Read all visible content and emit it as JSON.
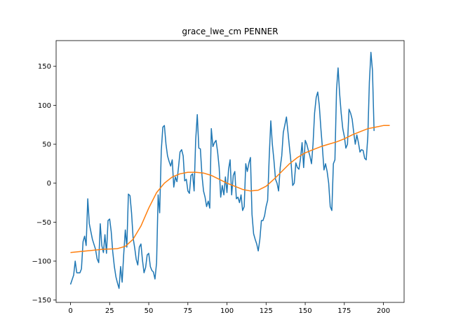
{
  "chart_data": {
    "type": "line",
    "title": "grace_lwe_cm PENNER",
    "xlabel": "",
    "ylabel": "",
    "xlim": [
      -9.2,
      213.2
    ],
    "ylim": [
      -153,
      183
    ],
    "xticks": [
      0,
      25,
      50,
      75,
      100,
      125,
      150,
      175,
      200
    ],
    "yticks": [
      -150,
      -100,
      -50,
      0,
      50,
      100,
      150
    ],
    "grid": false,
    "series": [
      {
        "color": "#1f77b4",
        "points": [
          [
            0,
            -130
          ],
          [
            2,
            -118
          ],
          [
            3,
            -100
          ],
          [
            4,
            -115
          ],
          [
            6,
            -115
          ],
          [
            7,
            -110
          ],
          [
            8,
            -75
          ],
          [
            9,
            -68
          ],
          [
            10,
            -80
          ],
          [
            11,
            -20
          ],
          [
            12,
            -52
          ],
          [
            14,
            -72
          ],
          [
            16,
            -85
          ],
          [
            17,
            -97
          ],
          [
            18,
            -102
          ],
          [
            19,
            -52
          ],
          [
            20,
            -80
          ],
          [
            21,
            -89
          ],
          [
            22,
            -66
          ],
          [
            23,
            -90
          ],
          [
            24,
            -48
          ],
          [
            25,
            -46
          ],
          [
            26,
            -62
          ],
          [
            27,
            -88
          ],
          [
            28,
            -107
          ],
          [
            29,
            -120
          ],
          [
            30,
            -128
          ],
          [
            31,
            -135
          ],
          [
            32,
            -107
          ],
          [
            33,
            -127
          ],
          [
            34,
            -92
          ],
          [
            35,
            -60
          ],
          [
            36,
            -82
          ],
          [
            37,
            -14
          ],
          [
            38,
            -16
          ],
          [
            39,
            -38
          ],
          [
            40,
            -70
          ],
          [
            41,
            -83
          ],
          [
            42,
            -98
          ],
          [
            43,
            -105
          ],
          [
            44,
            -82
          ],
          [
            45,
            -78
          ],
          [
            46,
            -99
          ],
          [
            47,
            -115
          ],
          [
            48,
            -108
          ],
          [
            49,
            -92
          ],
          [
            50,
            -90
          ],
          [
            51,
            -107
          ],
          [
            52,
            -112
          ],
          [
            53,
            -114
          ],
          [
            54,
            -123
          ],
          [
            55,
            -102
          ],
          [
            56,
            -15
          ],
          [
            57,
            -38
          ],
          [
            58,
            42
          ],
          [
            59,
            72
          ],
          [
            60,
            74
          ],
          [
            61,
            50
          ],
          [
            62,
            35
          ],
          [
            63,
            28
          ],
          [
            64,
            22
          ],
          [
            65,
            30
          ],
          [
            66,
            -5
          ],
          [
            67,
            8
          ],
          [
            68,
            2
          ],
          [
            69,
            20
          ],
          [
            70,
            40
          ],
          [
            71,
            43
          ],
          [
            72,
            35
          ],
          [
            73,
            3
          ],
          [
            74,
            5
          ],
          [
            75,
            -10
          ],
          [
            76,
            -13
          ],
          [
            77,
            10
          ],
          [
            78,
            12
          ],
          [
            79,
            -10
          ],
          [
            80,
            55
          ],
          [
            81,
            88
          ],
          [
            82,
            45
          ],
          [
            83,
            44
          ],
          [
            84,
            10
          ],
          [
            85,
            -10
          ],
          [
            86,
            -18
          ],
          [
            87,
            -30
          ],
          [
            88,
            -23
          ],
          [
            89,
            -32
          ],
          [
            90,
            70
          ],
          [
            91,
            47
          ],
          [
            92,
            52
          ],
          [
            93,
            55
          ],
          [
            94,
            40
          ],
          [
            95,
            20
          ],
          [
            96,
            -18
          ],
          [
            97,
            -3
          ],
          [
            98,
            -15
          ],
          [
            99,
            8
          ],
          [
            100,
            -12
          ],
          [
            101,
            18
          ],
          [
            102,
            30
          ],
          [
            103,
            -15
          ],
          [
            104,
            10
          ],
          [
            105,
            15
          ],
          [
            106,
            -20
          ],
          [
            107,
            -18
          ],
          [
            108,
            -25
          ],
          [
            109,
            -15
          ],
          [
            110,
            -35
          ],
          [
            111,
            -30
          ],
          [
            112,
            25
          ],
          [
            113,
            15
          ],
          [
            114,
            26
          ],
          [
            115,
            33
          ],
          [
            116,
            -40
          ],
          [
            117,
            -65
          ],
          [
            118,
            -72
          ],
          [
            119,
            -78
          ],
          [
            120,
            -87
          ],
          [
            121,
            -72
          ],
          [
            122,
            -48
          ],
          [
            123,
            -48
          ],
          [
            124,
            -42
          ],
          [
            125,
            -30
          ],
          [
            126,
            -22
          ],
          [
            127,
            35
          ],
          [
            128,
            80
          ],
          [
            129,
            50
          ],
          [
            130,
            30
          ],
          [
            131,
            5
          ],
          [
            132,
            0
          ],
          [
            133,
            -10
          ],
          [
            134,
            20
          ],
          [
            135,
            35
          ],
          [
            136,
            65
          ],
          [
            137,
            75
          ],
          [
            138,
            85
          ],
          [
            139,
            65
          ],
          [
            140,
            45
          ],
          [
            141,
            25
          ],
          [
            142,
            -3
          ],
          [
            143,
            0
          ],
          [
            144,
            26
          ],
          [
            145,
            20
          ],
          [
            146,
            18
          ],
          [
            147,
            32
          ],
          [
            148,
            52
          ],
          [
            149,
            20
          ],
          [
            150,
            55
          ],
          [
            151,
            50
          ],
          [
            152,
            42
          ],
          [
            153,
            35
          ],
          [
            154,
            25
          ],
          [
            155,
            50
          ],
          [
            156,
            90
          ],
          [
            157,
            110
          ],
          [
            158,
            117
          ],
          [
            159,
            100
          ],
          [
            160,
            70
          ],
          [
            161,
            45
          ],
          [
            162,
            17
          ],
          [
            163,
            25
          ],
          [
            164,
            15
          ],
          [
            165,
            0
          ],
          [
            166,
            -30
          ],
          [
            167,
            -35
          ],
          [
            168,
            25
          ],
          [
            169,
            30
          ],
          [
            170,
            120
          ],
          [
            171,
            148
          ],
          [
            172,
            115
          ],
          [
            173,
            90
          ],
          [
            174,
            70
          ],
          [
            175,
            60
          ],
          [
            176,
            45
          ],
          [
            177,
            50
          ],
          [
            178,
            95
          ],
          [
            179,
            90
          ],
          [
            180,
            82
          ],
          [
            181,
            65
          ],
          [
            182,
            50
          ],
          [
            183,
            62
          ],
          [
            184,
            52
          ],
          [
            185,
            40
          ],
          [
            186,
            43
          ],
          [
            187,
            42
          ],
          [
            188,
            32
          ],
          [
            189,
            30
          ],
          [
            190,
            60
          ],
          [
            191,
            130
          ],
          [
            192,
            168
          ],
          [
            193,
            145
          ],
          [
            194,
            67
          ]
        ]
      },
      {
        "color": "#ff7f0e",
        "points": [
          [
            0,
            -89
          ],
          [
            10,
            -87
          ],
          [
            20,
            -85
          ],
          [
            25,
            -84.5
          ],
          [
            30,
            -84
          ],
          [
            35,
            -81
          ],
          [
            40,
            -72
          ],
          [
            45,
            -55
          ],
          [
            50,
            -32
          ],
          [
            55,
            -12
          ],
          [
            60,
            0
          ],
          [
            65,
            8
          ],
          [
            70,
            12
          ],
          [
            75,
            14
          ],
          [
            80,
            14
          ],
          [
            85,
            13
          ],
          [
            90,
            10
          ],
          [
            95,
            5
          ],
          [
            100,
            0
          ],
          [
            105,
            -4
          ],
          [
            110,
            -8
          ],
          [
            115,
            -10
          ],
          [
            120,
            -9
          ],
          [
            125,
            -4
          ],
          [
            130,
            5
          ],
          [
            135,
            15
          ],
          [
            140,
            25
          ],
          [
            145,
            33
          ],
          [
            150,
            39
          ],
          [
            155,
            43
          ],
          [
            160,
            47
          ],
          [
            165,
            50
          ],
          [
            170,
            53
          ],
          [
            175,
            57
          ],
          [
            180,
            62
          ],
          [
            185,
            66
          ],
          [
            190,
            70
          ],
          [
            195,
            72
          ],
          [
            200,
            74
          ],
          [
            204,
            74
          ]
        ]
      }
    ]
  }
}
